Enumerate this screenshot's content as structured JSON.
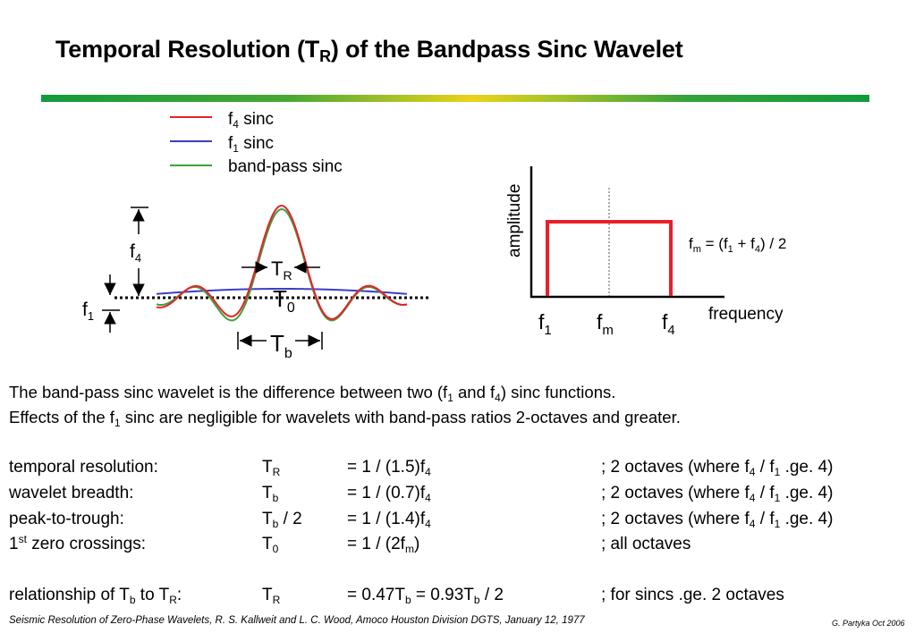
{
  "title": {
    "main": "Temporal Resolution (T",
    "sub": "R",
    "rest": ") of the Bandpass Sinc Wavelet"
  },
  "colors": {
    "f4_sinc": "#e8202a",
    "f1_sinc": "#3b3fc4",
    "bandpass_sinc": "#3ea23c",
    "spectrum": "#e8202a"
  },
  "legend": {
    "items": [
      {
        "pre": "f",
        "sub": "4",
        "post": " sinc"
      },
      {
        "pre": "f",
        "sub": "1",
        "post": " sinc"
      },
      {
        "pre": "band-pass sinc",
        "sub": "",
        "post": ""
      }
    ]
  },
  "wavelet": {
    "f4_label": {
      "main": "f",
      "sub": "4"
    },
    "f1_label": {
      "main": "f",
      "sub": "1"
    },
    "tr_label": {
      "main": "T",
      "sub": "R"
    },
    "t0_label": {
      "main": "T",
      "sub": "0"
    },
    "tb_label": {
      "main": "T",
      "sub": "b"
    }
  },
  "spectrum": {
    "ylabel": "amplitude",
    "xlabel": "frequency",
    "tick_f1": {
      "main": "f",
      "sub": "1"
    },
    "tick_fm": {
      "main": "f",
      "sub": "m"
    },
    "tick_f4": {
      "main": "f",
      "sub": "4"
    },
    "formula": {
      "a": "f",
      "a_sub": "m",
      "b": " = (f",
      "b_sub": "1",
      "c": " + f",
      "c_sub": "4",
      "d": ") / 2"
    }
  },
  "description": {
    "line1": {
      "a": "The band-pass sinc wavelet is the difference between two  (f",
      "a_sub": "1",
      "b": " and f",
      "b_sub": "4",
      "c": ") sinc functions."
    },
    "line2": {
      "a": "Effects of the f",
      "a_sub": "1",
      "b": " sinc are negligible for wavelets with band-pass ratios 2-octaves and greater."
    }
  },
  "rows": [
    {
      "label": "temporal resolution:",
      "label_sup": "",
      "label_rest": "",
      "sym": "T",
      "sym_sub": "R",
      "sym_rest": "",
      "eq": "= 1 / (1.5)f",
      "eq_sub": "4",
      "eq_rest": "",
      "eq_sub2": "",
      "eq_rest2": "",
      "note": "; 2 octaves (where f",
      "note_sub": "4",
      "note_mid": " / f",
      "note_sub2": "1",
      "note_end": " .ge. 4)"
    },
    {
      "label": "wavelet breadth:",
      "label_sup": "",
      "label_rest": "",
      "sym": "T",
      "sym_sub": "b",
      "sym_rest": "",
      "eq": "= 1 / (0.7)f",
      "eq_sub": "4",
      "eq_rest": "",
      "eq_sub2": "",
      "eq_rest2": "",
      "note": "; 2 octaves (where f",
      "note_sub": "4",
      "note_mid": " / f",
      "note_sub2": "1",
      "note_end": " .ge. 4)"
    },
    {
      "label": "peak-to-trough:",
      "label_sup": "",
      "label_rest": "",
      "sym": "T",
      "sym_sub": "b",
      "sym_rest": " / 2",
      "eq": "= 1 / (1.4)f",
      "eq_sub": "4",
      "eq_rest": "",
      "eq_sub2": "",
      "eq_rest2": "",
      "note": "; 2 octaves (where f",
      "note_sub": "4",
      "note_mid": " / f",
      "note_sub2": "1",
      "note_end": " .ge. 4)"
    },
    {
      "label": "1",
      "label_sup": "st",
      "label_rest": " zero crossings:",
      "sym": "T",
      "sym_sub": "0",
      "sym_rest": "",
      "eq": "= 1 / (2f",
      "eq_sub": "m",
      "eq_rest": ")",
      "eq_sub2": "",
      "eq_rest2": "",
      "note": "; all octaves",
      "note_sub": "",
      "note_mid": "",
      "note_sub2": "",
      "note_end": ""
    },
    {
      "label": "relationship of T",
      "label_sup": "",
      "label_rest": "",
      "label_sub": "b",
      "label_mid": " to T",
      "label_sub2": "R",
      "label_end": ":",
      "sym": "T",
      "sym_sub": "R",
      "sym_rest": "",
      "eq": "= 0.47T",
      "eq_sub": "b",
      "eq_rest": " = 0.93T",
      "eq_sub2": "b",
      "eq_rest2": " / 2",
      "note": "; for sincs .ge. 2 octaves",
      "note_sub": "",
      "note_mid": "",
      "note_sub2": "",
      "note_end": ""
    }
  ],
  "citation": "Seismic Resolution of Zero-Phase Wavelets, R. S. Kallweit and L. C. Wood, Amoco Houston Division DGTS,  January 12, 1977",
  "author": "G. Partyka Oct 2006"
}
